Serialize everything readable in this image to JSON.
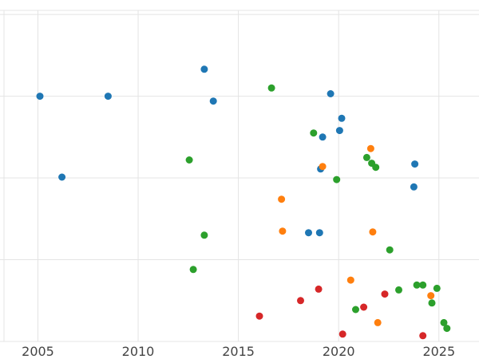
{
  "chart_data": {
    "type": "scatter",
    "title": "",
    "xlabel": "",
    "ylabel": "",
    "grid": true,
    "legend": false,
    "xlim": [
      2003.11,
      2027.0
    ],
    "ylim": [
      0,
      4.05
    ],
    "x_ticks": [
      2005,
      2010,
      2015,
      2020,
      2025
    ],
    "x_tick_labels": [
      "2005",
      "2010",
      "2015",
      "2020",
      "2025"
    ],
    "y_gridlines": [
      1,
      2,
      3,
      4
    ],
    "colors": {
      "grid": "#e4e4e4",
      "tick_label": "#444444",
      "background": "#ffffff"
    },
    "marker_radius": 4.5,
    "series": [
      {
        "name": "series-blue",
        "color": "#1f77b4",
        "points": [
          [
            2005.1,
            3.0
          ],
          [
            2006.2,
            2.01
          ],
          [
            2008.5,
            3.0
          ],
          [
            2013.3,
            3.33
          ],
          [
            2013.75,
            2.94
          ],
          [
            2019.6,
            3.03
          ],
          [
            2020.15,
            2.73
          ],
          [
            2020.05,
            2.58
          ],
          [
            2019.2,
            2.5
          ],
          [
            2019.1,
            2.11
          ],
          [
            2018.5,
            1.33
          ],
          [
            2019.05,
            1.33
          ],
          [
            2023.8,
            2.17
          ],
          [
            2023.75,
            1.89
          ]
        ]
      },
      {
        "name": "series-green",
        "color": "#2ca02c",
        "points": [
          [
            2012.55,
            2.22
          ],
          [
            2016.65,
            3.1
          ],
          [
            2018.75,
            2.55
          ],
          [
            2019.9,
            1.98
          ],
          [
            2021.4,
            2.25
          ],
          [
            2021.65,
            2.18
          ],
          [
            2021.85,
            2.13
          ],
          [
            2013.3,
            1.3
          ],
          [
            2012.75,
            0.88
          ],
          [
            2022.55,
            1.12
          ],
          [
            2020.85,
            0.39
          ],
          [
            2023.0,
            0.63
          ],
          [
            2023.9,
            0.69
          ],
          [
            2024.2,
            0.69
          ],
          [
            2024.9,
            0.65
          ],
          [
            2024.65,
            0.47
          ],
          [
            2025.25,
            0.23
          ],
          [
            2025.4,
            0.16
          ]
        ]
      },
      {
        "name": "series-orange",
        "color": "#ff7f0e",
        "points": [
          [
            2017.15,
            1.74
          ],
          [
            2017.2,
            1.35
          ],
          [
            2019.2,
            2.14
          ],
          [
            2021.6,
            2.36
          ],
          [
            2021.7,
            1.34
          ],
          [
            2020.6,
            0.75
          ],
          [
            2021.95,
            0.23
          ],
          [
            2024.6,
            0.56
          ]
        ]
      },
      {
        "name": "series-red",
        "color": "#d62728",
        "points": [
          [
            2016.05,
            0.31
          ],
          [
            2018.1,
            0.5
          ],
          [
            2019.0,
            0.64
          ],
          [
            2020.2,
            0.09
          ],
          [
            2021.25,
            0.42
          ],
          [
            2022.3,
            0.58
          ],
          [
            2024.2,
            0.07
          ]
        ]
      }
    ]
  }
}
